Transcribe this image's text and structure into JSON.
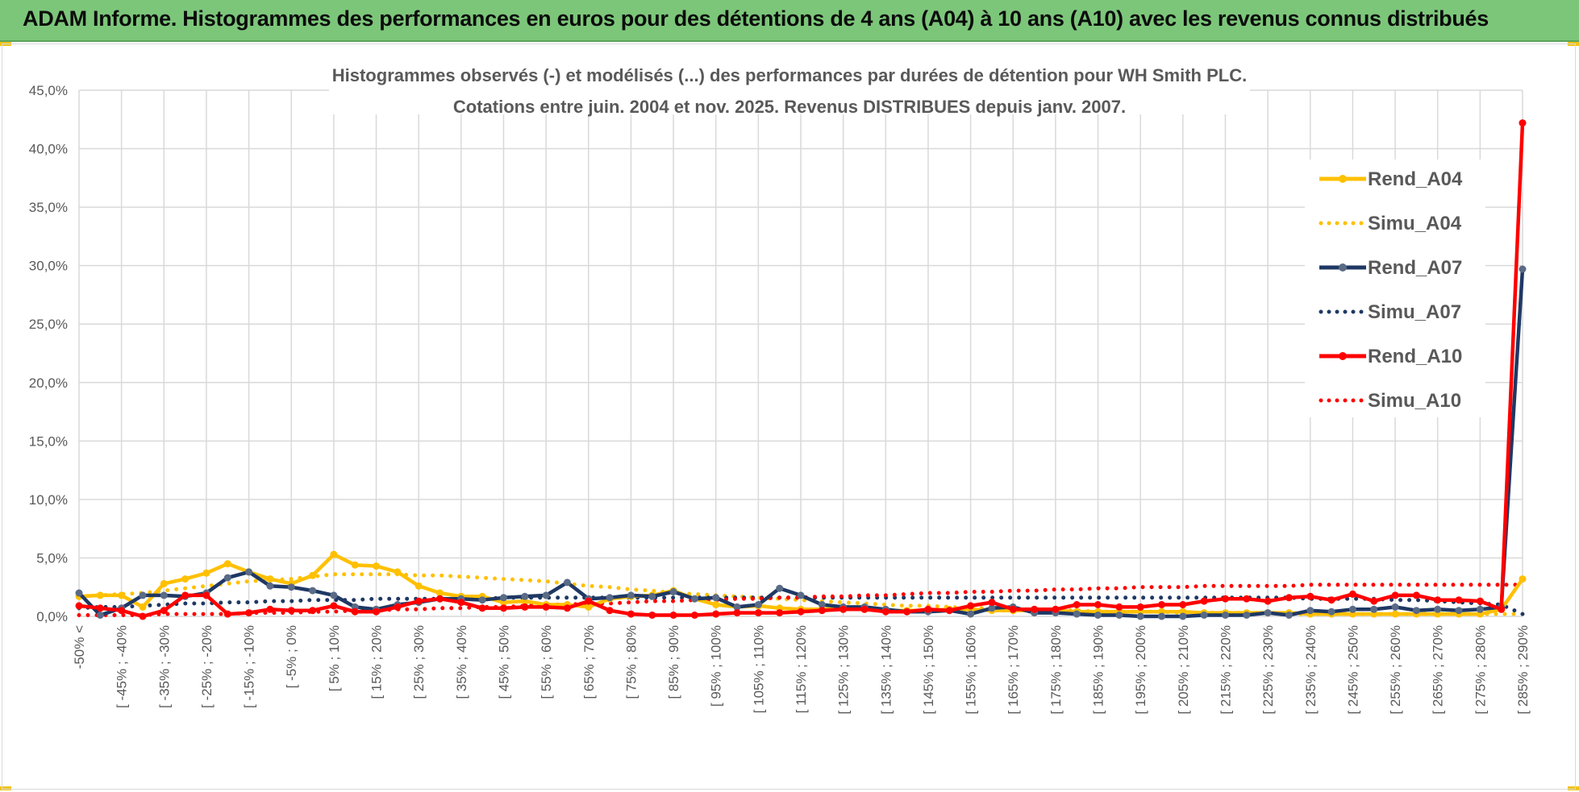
{
  "banner": {
    "title": "ADAM Informe. Histogrammes des performances en euros pour des détentions de 4 ans (A04) à 10 ans (A10) avec les revenus connus distribués"
  },
  "colors": {
    "banner_bg": "#7cc67a",
    "A04": "#ffc000",
    "A07": "#1f3864",
    "A10": "#ff0000",
    "grid": "#d9d9d9",
    "text": "#595959"
  },
  "chart_data": {
    "type": "line",
    "title": "Histogrammes observés (-) et modélisés (...) des performances par durées de détention pour WH Smith PLC.",
    "subtitle": "Cotations entre juin. 2004 et nov. 2025. Revenus DISTRIBUES depuis janv. 2007.",
    "xlabel": "",
    "ylabel": "",
    "ylim": [
      0,
      45
    ],
    "y_ticks": [
      "0,0%",
      "5,0%",
      "10,0%",
      "15,0%",
      "20,0%",
      "25,0%",
      "30,0%",
      "35,0%",
      "40,0%",
      "45,0%"
    ],
    "grid": true,
    "legend_position": "right",
    "x_tick_labels": [
      "-50% <",
      "[ -45% ; -40%",
      "[ -35% ; -30%",
      "[ -25% ; -20%",
      "[ -15% ; -10%",
      "[ -5% ; 0%",
      "[ 5% ; 10%",
      "[ 15% ; 20%",
      "[ 25% ; 30%",
      "[ 35% ; 40%",
      "[ 45% ; 50%",
      "[ 55% ; 60%",
      "[ 65% ; 70%",
      "[ 75% ; 80%",
      "[ 85% ; 90%",
      "[ 95% ; 100%",
      "[ 105% ; 110%",
      "[ 115% ; 120%",
      "[ 125% ; 130%",
      "[ 135% ; 140%",
      "[ 145% ; 150%",
      "[ 155% ; 160%",
      "[ 165% ; 170%",
      "[ 175% ; 180%",
      "[ 185% ; 190%",
      "[ 195% ; 200%",
      "[ 205% ; 210%",
      "[ 215% ; 220%",
      "[ 225% ; 230%",
      "[ 235% ; 240%",
      "[ 245% ; 250%",
      "[ 255% ; 260%",
      "[ 265% ; 270%",
      "[ 275% ; 280%",
      "[ 285% ; 290%"
    ],
    "n_points": 69,
    "series": [
      {
        "name": "Rend_A04",
        "style": "solid",
        "color_key": "A04",
        "values": [
          1.7,
          1.8,
          1.8,
          0.8,
          2.8,
          3.2,
          3.7,
          4.5,
          3.8,
          3.2,
          2.8,
          3.5,
          5.3,
          4.4,
          4.3,
          3.8,
          2.6,
          2.0,
          1.7,
          1.7,
          1.2,
          1.3,
          1.0,
          1.0,
          0.8,
          1.5,
          1.7,
          1.8,
          2.2,
          1.5,
          1.0,
          0.8,
          0.9,
          0.7,
          0.6,
          0.6,
          0.7,
          0.6,
          0.5,
          0.5,
          0.5,
          0.6,
          0.6,
          0.5,
          0.5,
          0.5,
          0.5,
          0.4,
          0.4,
          0.4,
          0.4,
          0.4,
          0.4,
          0.3,
          0.3,
          0.3,
          0.3,
          0.3,
          0.2,
          0.2,
          0.2,
          0.2,
          0.2,
          0.2,
          0.2,
          0.2,
          0.2,
          0.6,
          3.2
        ]
      },
      {
        "name": "Simu_A04",
        "style": "dotted",
        "color_key": "A04",
        "values": [
          1.7,
          1.8,
          1.9,
          2.0,
          2.2,
          2.4,
          2.6,
          2.8,
          3.0,
          3.1,
          3.2,
          3.4,
          3.6,
          3.6,
          3.6,
          3.6,
          3.5,
          3.5,
          3.4,
          3.3,
          3.2,
          3.1,
          3.0,
          2.8,
          2.6,
          2.5,
          2.3,
          2.2,
          2.0,
          1.9,
          1.8,
          1.7,
          1.6,
          1.5,
          1.4,
          1.3,
          1.2,
          1.1,
          1.0,
          0.9,
          0.9,
          0.8,
          0.7,
          0.7,
          0.6,
          0.6,
          0.5,
          0.5,
          0.4,
          0.4,
          0.4,
          0.4,
          0.3,
          0.3,
          0.3,
          0.3,
          0.3,
          0.2,
          0.2,
          0.2,
          0.2,
          0.2,
          0.2,
          0.2,
          0.2,
          0.2,
          0.2,
          0.2,
          0.2
        ]
      },
      {
        "name": "Rend_A07",
        "style": "solid",
        "color_key": "A07",
        "values": [
          2.0,
          0.1,
          0.7,
          1.8,
          1.8,
          1.7,
          2.0,
          3.3,
          3.8,
          2.6,
          2.5,
          2.2,
          1.8,
          0.8,
          0.6,
          1.0,
          1.2,
          1.5,
          1.5,
          1.4,
          1.6,
          1.7,
          1.8,
          2.9,
          1.5,
          1.6,
          1.8,
          1.7,
          2.1,
          1.5,
          1.6,
          0.8,
          1.0,
          2.4,
          1.8,
          1.0,
          0.8,
          0.8,
          0.6,
          0.4,
          0.4,
          0.5,
          0.2,
          0.7,
          0.8,
          0.3,
          0.3,
          0.2,
          0.1,
          0.1,
          0.0,
          0.0,
          0.0,
          0.1,
          0.1,
          0.1,
          0.3,
          0.1,
          0.5,
          0.4,
          0.6,
          0.6,
          0.8,
          0.5,
          0.6,
          0.5,
          0.6,
          0.8,
          29.7
        ]
      },
      {
        "name": "Simu_A07",
        "style": "dotted",
        "color_key": "A07",
        "values": [
          0.7,
          0.8,
          0.8,
          0.9,
          1.0,
          1.1,
          1.1,
          1.2,
          1.2,
          1.3,
          1.3,
          1.4,
          1.4,
          1.4,
          1.5,
          1.5,
          1.5,
          1.5,
          1.5,
          1.5,
          1.6,
          1.6,
          1.6,
          1.6,
          1.6,
          1.6,
          1.6,
          1.6,
          1.6,
          1.6,
          1.6,
          1.6,
          1.6,
          1.6,
          1.6,
          1.6,
          1.6,
          1.6,
          1.6,
          1.6,
          1.6,
          1.6,
          1.6,
          1.6,
          1.6,
          1.6,
          1.6,
          1.6,
          1.6,
          1.6,
          1.6,
          1.6,
          1.6,
          1.6,
          1.6,
          1.6,
          1.6,
          1.6,
          1.5,
          1.5,
          1.5,
          1.5,
          1.4,
          1.4,
          1.3,
          1.2,
          1.1,
          1.0,
          0.2
        ]
      },
      {
        "name": "Rend_A10",
        "style": "solid",
        "color_key": "A10",
        "values": [
          0.9,
          0.7,
          0.5,
          0.0,
          0.5,
          1.8,
          1.8,
          0.2,
          0.3,
          0.6,
          0.5,
          0.5,
          0.9,
          0.4,
          0.4,
          0.8,
          1.3,
          1.5,
          1.2,
          0.7,
          0.7,
          0.8,
          0.8,
          0.7,
          1.3,
          0.5,
          0.2,
          0.1,
          0.1,
          0.1,
          0.2,
          0.3,
          0.3,
          0.3,
          0.4,
          0.5,
          0.6,
          0.6,
          0.4,
          0.4,
          0.6,
          0.5,
          0.9,
          1.2,
          0.6,
          0.6,
          0.6,
          1.0,
          1.0,
          0.8,
          0.8,
          1.0,
          1.0,
          1.3,
          1.5,
          1.5,
          1.3,
          1.6,
          1.7,
          1.4,
          1.9,
          1.3,
          1.8,
          1.8,
          1.4,
          1.4,
          1.3,
          0.6,
          42.2
        ]
      },
      {
        "name": "Simu_A10",
        "style": "dotted",
        "color_key": "A10",
        "values": [
          0.1,
          0.1,
          0.1,
          0.1,
          0.2,
          0.2,
          0.2,
          0.2,
          0.3,
          0.3,
          0.3,
          0.4,
          0.4,
          0.5,
          0.5,
          0.6,
          0.6,
          0.7,
          0.7,
          0.8,
          0.8,
          0.9,
          1.0,
          1.0,
          1.1,
          1.1,
          1.2,
          1.3,
          1.3,
          1.4,
          1.4,
          1.5,
          1.5,
          1.6,
          1.6,
          1.7,
          1.7,
          1.8,
          1.8,
          1.9,
          2.0,
          2.0,
          2.1,
          2.1,
          2.2,
          2.2,
          2.3,
          2.3,
          2.4,
          2.4,
          2.5,
          2.5,
          2.5,
          2.6,
          2.6,
          2.6,
          2.6,
          2.6,
          2.7,
          2.7,
          2.7,
          2.7,
          2.7,
          2.7,
          2.7,
          2.7,
          2.7,
          2.7,
          2.7
        ]
      }
    ]
  }
}
